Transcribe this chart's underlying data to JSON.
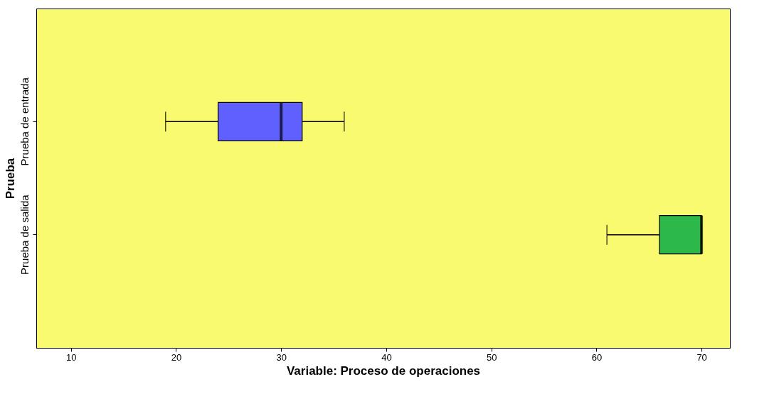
{
  "chart_data": {
    "type": "box",
    "orientation": "horizontal",
    "xlabel": "Variable: Proceso de operaciones",
    "ylabel": "Prueba",
    "categories": [
      "Prueba de entrada",
      "Prueba de salida"
    ],
    "boxes": [
      {
        "low": 19,
        "q1": 24,
        "median": 30,
        "q3": 32,
        "high": 36
      },
      {
        "low": 61,
        "q1": 66,
        "median": 70,
        "q3": 70,
        "high": 70
      }
    ],
    "colors": [
      "#6060ff",
      "#2db84a"
    ],
    "xlim": [
      6.7,
      72.7
    ],
    "xticks": [
      10,
      20,
      30,
      40,
      50,
      60,
      70
    ],
    "grid": false
  }
}
